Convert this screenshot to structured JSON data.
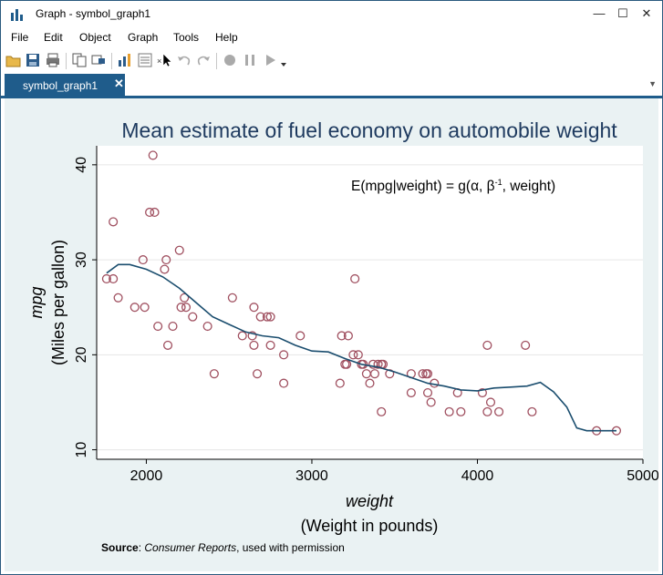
{
  "window": {
    "title": "Graph - symbol_graph1",
    "minimize": "—",
    "maximize": "☐",
    "close": "✕"
  },
  "menu": [
    "File",
    "Edit",
    "Object",
    "Graph",
    "Tools",
    "Help"
  ],
  "toolbar": {
    "icons": [
      "open-icon",
      "save-icon",
      "print-icon",
      "copy-icon",
      "rename-icon",
      "graph-editor-icon",
      "object-browser-icon",
      "undo-icon",
      "redo-icon",
      "record-icon",
      "pause-icon",
      "play-icon"
    ]
  },
  "tab": {
    "label": "symbol_graph1",
    "close": "✕"
  },
  "colors": {
    "accent": "#1f5c8b",
    "marker": "#a05060",
    "line": "#1a4d6e",
    "plot_bg": "#ffffff",
    "graph_bg": "#eaf2f3",
    "title": "#1e3a5f"
  },
  "chart_data": {
    "type": "scatter",
    "title": "Mean estimate of fuel economy on automobile weight",
    "annotation": "E(mpg|weight) = g(α, β",
    "annotation_sup": "-1",
    "annotation_tail": ", weight)",
    "xlabel_var": "weight",
    "xlabel": "(Weight in pounds)",
    "ylabel_var": "mpg",
    "ylabel": "(Miles per gallon)",
    "xlim": [
      1700,
      5000
    ],
    "ylim": [
      9,
      42
    ],
    "xticks": [
      2000,
      3000,
      4000,
      5000
    ],
    "yticks": [
      10,
      20,
      30,
      40
    ],
    "note_bold": "Source",
    "note_sep": ": ",
    "note_italic": "Consumer Reports",
    "note_rest": ", used with permission",
    "points": [
      [
        1760,
        28
      ],
      [
        1800,
        34
      ],
      [
        1800,
        28
      ],
      [
        1830,
        26
      ],
      [
        1930,
        25
      ],
      [
        1980,
        30
      ],
      [
        1990,
        25
      ],
      [
        2020,
        35
      ],
      [
        2040,
        41
      ],
      [
        2050,
        35
      ],
      [
        2070,
        23
      ],
      [
        2110,
        29
      ],
      [
        2120,
        30
      ],
      [
        2130,
        21
      ],
      [
        2160,
        23
      ],
      [
        2200,
        31
      ],
      [
        2210,
        25
      ],
      [
        2230,
        26
      ],
      [
        2240,
        25
      ],
      [
        2280,
        24
      ],
      [
        2370,
        23
      ],
      [
        2410,
        18
      ],
      [
        2520,
        26
      ],
      [
        2580,
        22
      ],
      [
        2640,
        22
      ],
      [
        2650,
        25
      ],
      [
        2650,
        21
      ],
      [
        2670,
        18
      ],
      [
        2690,
        24
      ],
      [
        2730,
        24
      ],
      [
        2750,
        24
      ],
      [
        2750,
        21
      ],
      [
        2830,
        20
      ],
      [
        2830,
        17
      ],
      [
        2930,
        22
      ],
      [
        3170,
        17
      ],
      [
        3180,
        22
      ],
      [
        3200,
        19
      ],
      [
        3210,
        19
      ],
      [
        3220,
        22
      ],
      [
        3250,
        20
      ],
      [
        3260,
        28
      ],
      [
        3280,
        20
      ],
      [
        3300,
        19
      ],
      [
        3310,
        19
      ],
      [
        3330,
        18
      ],
      [
        3350,
        17
      ],
      [
        3370,
        19
      ],
      [
        3380,
        18
      ],
      [
        3400,
        19
      ],
      [
        3420,
        14
      ],
      [
        3420,
        19
      ],
      [
        3430,
        19
      ],
      [
        3470,
        18
      ],
      [
        3600,
        18
      ],
      [
        3600,
        16
      ],
      [
        3670,
        18
      ],
      [
        3690,
        18
      ],
      [
        3700,
        16
      ],
      [
        3700,
        18
      ],
      [
        3720,
        15
      ],
      [
        3740,
        17
      ],
      [
        3830,
        14
      ],
      [
        3880,
        16
      ],
      [
        3900,
        14
      ],
      [
        4030,
        16
      ],
      [
        4060,
        21
      ],
      [
        4060,
        14
      ],
      [
        4080,
        15
      ],
      [
        4130,
        14
      ],
      [
        4290,
        21
      ],
      [
        4330,
        14
      ],
      [
        4720,
        12
      ],
      [
        4840,
        12
      ]
    ],
    "curve": [
      [
        1760,
        28.6
      ],
      [
        1830,
        29.5
      ],
      [
        1900,
        29.5
      ],
      [
        2000,
        29.0
      ],
      [
        2100,
        28.2
      ],
      [
        2200,
        27.0
      ],
      [
        2300,
        25.5
      ],
      [
        2400,
        24.0
      ],
      [
        2500,
        23.2
      ],
      [
        2600,
        22.4
      ],
      [
        2700,
        22.0
      ],
      [
        2800,
        21.8
      ],
      [
        2900,
        21.0
      ],
      [
        3000,
        20.4
      ],
      [
        3100,
        20.3
      ],
      [
        3200,
        19.6
      ],
      [
        3300,
        19.0
      ],
      [
        3400,
        18.7
      ],
      [
        3500,
        18.2
      ],
      [
        3600,
        17.6
      ],
      [
        3700,
        17.0
      ],
      [
        3800,
        16.7
      ],
      [
        3900,
        16.3
      ],
      [
        4000,
        16.2
      ],
      [
        4100,
        16.5
      ],
      [
        4200,
        16.6
      ],
      [
        4300,
        16.7
      ],
      [
        4380,
        17.1
      ],
      [
        4460,
        16.1
      ],
      [
        4540,
        14.5
      ],
      [
        4600,
        12.3
      ],
      [
        4660,
        12.0
      ],
      [
        4840,
        12.0
      ]
    ]
  }
}
